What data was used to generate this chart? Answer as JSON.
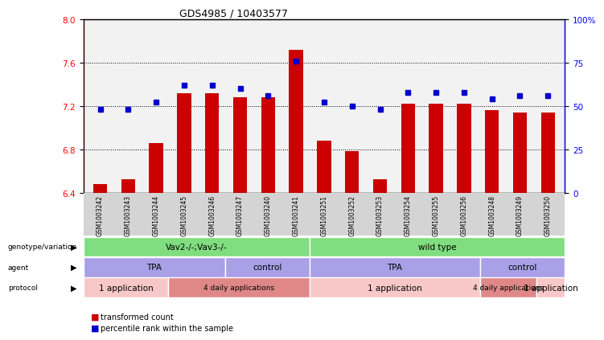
{
  "title": "GDS4985 / 10403577",
  "samples": [
    "GSM1003242",
    "GSM1003243",
    "GSM1003244",
    "GSM1003245",
    "GSM1003246",
    "GSM1003247",
    "GSM1003240",
    "GSM1003241",
    "GSM1003251",
    "GSM1003252",
    "GSM1003253",
    "GSM1003254",
    "GSM1003255",
    "GSM1003256",
    "GSM1003248",
    "GSM1003249",
    "GSM1003250"
  ],
  "bar_values": [
    6.48,
    6.52,
    6.86,
    7.32,
    7.32,
    7.28,
    7.28,
    7.72,
    6.88,
    6.78,
    6.52,
    7.22,
    7.22,
    7.22,
    7.16,
    7.14,
    7.14
  ],
  "dot_values": [
    48,
    48,
    52,
    62,
    62,
    60,
    56,
    76,
    52,
    50,
    48,
    58,
    58,
    58,
    54,
    56,
    56
  ],
  "ylim_left": [
    6.4,
    8.0
  ],
  "ylim_right": [
    0,
    100
  ],
  "yticks_left": [
    6.4,
    6.8,
    7.2,
    7.6,
    8.0
  ],
  "yticks_right": [
    0,
    25,
    50,
    75,
    100
  ],
  "ytick_labels_right": [
    "0",
    "25",
    "50",
    "75",
    "100%"
  ],
  "bar_color": "#cc0000",
  "dot_color": "#0000cc",
  "dotted_lines": [
    6.8,
    7.2,
    7.6
  ],
  "genotype_groups": [
    {
      "label": "Vav2-/-;Vav3-/-",
      "start": 0,
      "end": 8,
      "color": "#80dd80"
    },
    {
      "label": "wild type",
      "start": 8,
      "end": 17,
      "color": "#80dd80"
    }
  ],
  "agent_groups": [
    {
      "label": "TPA",
      "start": 0,
      "end": 5,
      "color": "#aaa0e8"
    },
    {
      "label": "control",
      "start": 5,
      "end": 8,
      "color": "#aaa0e8"
    },
    {
      "label": "TPA",
      "start": 8,
      "end": 14,
      "color": "#aaa0e8"
    },
    {
      "label": "control",
      "start": 14,
      "end": 17,
      "color": "#aaa0e8"
    }
  ],
  "protocol_groups": [
    {
      "label": "1 application",
      "start": 0,
      "end": 3,
      "color": "#f8c8c8"
    },
    {
      "label": "4 daily applications",
      "start": 3,
      "end": 8,
      "color": "#e08888"
    },
    {
      "label": "1 application",
      "start": 8,
      "end": 14,
      "color": "#f8c8c8"
    },
    {
      "label": "4 daily applications",
      "start": 14,
      "end": 16,
      "color": "#e08888"
    },
    {
      "label": "1 application",
      "start": 16,
      "end": 17,
      "color": "#f8c8c8"
    }
  ],
  "row_label_names": [
    "genotype/variation",
    "agent",
    "protocol"
  ],
  "legend_items": [
    {
      "label": "transformed count",
      "color": "#cc0000"
    },
    {
      "label": "percentile rank within the sample",
      "color": "#0000cc"
    }
  ]
}
